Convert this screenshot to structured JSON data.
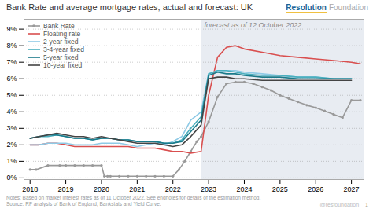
{
  "chart_data": {
    "type": "line",
    "title": "Bank Rate and average mortgage rates, actual and forecast: UK",
    "xlim": [
      2017.83,
      2027.35
    ],
    "xticks": [
      2018,
      2019,
      2020,
      2021,
      2022,
      2023,
      2024,
      2025,
      2026,
      2027
    ],
    "ylim": [
      -0.001,
      0.096
    ],
    "yticks": [
      {
        "value": 0,
        "label": "0%"
      },
      {
        "value": 0.01,
        "label": "1%"
      },
      {
        "value": 0.02,
        "label": "2%"
      },
      {
        "value": 0.03,
        "label": "3%"
      },
      {
        "value": 0.04,
        "label": "4%"
      },
      {
        "value": 0.05,
        "label": "5%"
      },
      {
        "value": 0.06,
        "label": "6%"
      },
      {
        "value": 0.07,
        "label": "7%"
      },
      {
        "value": 0.08,
        "label": "8%"
      },
      {
        "value": 0.09,
        "label": "9%"
      }
    ],
    "grid": true,
    "legend": "upper left",
    "forecast": {
      "start": 2022.79,
      "color": "#e8ecf2",
      "label": "forecast as of 12 October 2022"
    },
    "series": [
      {
        "name": "Bank Rate",
        "color": "#999999",
        "marker": "circle",
        "x": [
          2018.0,
          2018.17,
          2018.5,
          2018.83,
          2019.0,
          2019.25,
          2019.5,
          2019.75,
          2020.0,
          2020.08,
          2020.17,
          2020.25,
          2020.5,
          2020.75,
          2021.0,
          2021.25,
          2021.5,
          2021.75,
          2022.0,
          2022.17,
          2022.33,
          2022.5,
          2022.67,
          2022.79,
          2023.0,
          2023.25,
          2023.5,
          2023.75,
          2024.0,
          2024.25,
          2024.5,
          2024.75,
          2025.0,
          2025.25,
          2025.5,
          2025.75,
          2026.0,
          2026.25,
          2026.5,
          2026.75,
          2027.0,
          2027.25
        ],
        "values": [
          0.005,
          0.005,
          0.0075,
          0.0075,
          0.0075,
          0.0075,
          0.0075,
          0.0075,
          0.0075,
          0.001,
          0.001,
          0.001,
          0.001,
          0.001,
          0.001,
          0.001,
          0.001,
          0.001,
          0.001,
          0.005,
          0.01,
          0.016,
          0.022,
          0.025,
          0.034,
          0.049,
          0.057,
          0.058,
          0.058,
          0.057,
          0.055,
          0.053,
          0.05,
          0.048,
          0.046,
          0.044,
          0.0425,
          0.0405,
          0.0385,
          0.0365,
          0.047,
          0.047
        ]
      },
      {
        "name": "Floating rate",
        "color": "#d94f4f",
        "x": [
          2018.0,
          2018.25,
          2018.5,
          2018.75,
          2019.0,
          2019.25,
          2019.5,
          2019.75,
          2020.0,
          2020.25,
          2020.5,
          2020.75,
          2021.0,
          2021.25,
          2021.5,
          2021.75,
          2022.0,
          2022.25,
          2022.5,
          2022.79,
          2023.0,
          2023.25,
          2023.5,
          2023.75,
          2024.0,
          2024.5,
          2025.0,
          2025.5,
          2026.0,
          2026.5,
          2027.0,
          2027.25
        ],
        "values": [
          0.02,
          0.02,
          0.021,
          0.021,
          0.02,
          0.019,
          0.019,
          0.019,
          0.019,
          0.019,
          0.019,
          0.019,
          0.018,
          0.018,
          0.018,
          0.017,
          0.016,
          0.016,
          0.015,
          0.016,
          0.05,
          0.073,
          0.079,
          0.08,
          0.078,
          0.076,
          0.074,
          0.073,
          0.072,
          0.071,
          0.07,
          0.069
        ]
      },
      {
        "name": "2-year fixed",
        "color": "#8ecae6",
        "x": [
          2018.0,
          2018.25,
          2018.5,
          2018.75,
          2019.0,
          2019.25,
          2019.5,
          2019.75,
          2020.0,
          2020.25,
          2020.5,
          2020.75,
          2021.0,
          2021.25,
          2021.5,
          2021.75,
          2022.0,
          2022.25,
          2022.5,
          2022.79,
          2023.0,
          2023.25,
          2023.5,
          2023.75,
          2024.0,
          2024.5,
          2025.0,
          2025.5,
          2026.0,
          2026.5,
          2027.0
        ],
        "values": [
          0.02,
          0.02,
          0.021,
          0.021,
          0.021,
          0.02,
          0.02,
          0.02,
          0.021,
          0.021,
          0.021,
          0.02,
          0.019,
          0.02,
          0.021,
          0.02,
          0.022,
          0.025,
          0.035,
          0.04,
          0.063,
          0.065,
          0.065,
          0.065,
          0.064,
          0.063,
          0.062,
          0.061,
          0.061,
          0.06,
          0.06
        ]
      },
      {
        "name": "3-4-year fixed",
        "color": "#4aafbe",
        "x": [
          2018.0,
          2018.25,
          2018.5,
          2018.75,
          2019.0,
          2019.25,
          2019.5,
          2019.75,
          2020.0,
          2020.25,
          2020.5,
          2020.75,
          2021.0,
          2021.25,
          2021.5,
          2021.75,
          2022.0,
          2022.25,
          2022.5,
          2022.79,
          2023.0,
          2023.25,
          2023.5,
          2023.75,
          2024.0,
          2024.5,
          2025.0,
          2025.5,
          2026.0,
          2026.5,
          2027.0
        ],
        "values": [
          0.024,
          0.025,
          0.025,
          0.026,
          0.025,
          0.024,
          0.024,
          0.023,
          0.024,
          0.024,
          0.023,
          0.023,
          0.022,
          0.022,
          0.022,
          0.021,
          0.021,
          0.023,
          0.03,
          0.037,
          0.063,
          0.065,
          0.065,
          0.064,
          0.063,
          0.062,
          0.062,
          0.061,
          0.061,
          0.06,
          0.06
        ]
      },
      {
        "name": "5-year fixed",
        "color": "#1a7a8a",
        "x": [
          2018.0,
          2018.25,
          2018.5,
          2018.75,
          2019.0,
          2019.25,
          2019.5,
          2019.75,
          2020.0,
          2020.25,
          2020.5,
          2020.75,
          2021.0,
          2021.25,
          2021.5,
          2021.75,
          2022.0,
          2022.25,
          2022.5,
          2022.79,
          2023.0,
          2023.25,
          2023.5,
          2023.75,
          2024.0,
          2024.5,
          2025.0,
          2025.5,
          2026.0,
          2026.5,
          2027.0
        ],
        "values": [
          0.024,
          0.025,
          0.026,
          0.026,
          0.025,
          0.024,
          0.024,
          0.023,
          0.024,
          0.024,
          0.023,
          0.023,
          0.022,
          0.022,
          0.022,
          0.021,
          0.021,
          0.022,
          0.028,
          0.035,
          0.062,
          0.064,
          0.063,
          0.063,
          0.062,
          0.061,
          0.061,
          0.06,
          0.06,
          0.06,
          0.06
        ]
      },
      {
        "name": "10-year fixed",
        "color": "#444444",
        "x": [
          2018.0,
          2018.25,
          2018.5,
          2018.75,
          2019.0,
          2019.25,
          2019.5,
          2019.75,
          2020.0,
          2020.25,
          2020.5,
          2020.75,
          2021.0,
          2021.25,
          2021.5,
          2021.75,
          2022.0,
          2022.25,
          2022.5,
          2022.79,
          2023.0,
          2023.25,
          2023.5,
          2023.75,
          2024.0,
          2024.5,
          2025.0,
          2025.5,
          2026.0,
          2026.5,
          2027.0
        ],
        "values": [
          0.024,
          0.025,
          0.026,
          0.027,
          0.026,
          0.025,
          0.025,
          0.024,
          0.025,
          0.024,
          0.023,
          0.022,
          0.021,
          0.021,
          0.021,
          0.02,
          0.019,
          0.02,
          0.025,
          0.032,
          0.06,
          0.061,
          0.061,
          0.06,
          0.06,
          0.059,
          0.059,
          0.059,
          0.059,
          0.059,
          0.059
        ]
      }
    ],
    "footnote": [
      "Notes: Based on market interest rates as of 11 October 2022. See endnotes for details of the estimation method.",
      "Source: RF analysis of Bank of England, Bankstats and Yield Curve."
    ],
    "logo": [
      "Resolution",
      "Foundation"
    ],
    "watermark": "@resfoundation",
    "page_number": "1"
  }
}
